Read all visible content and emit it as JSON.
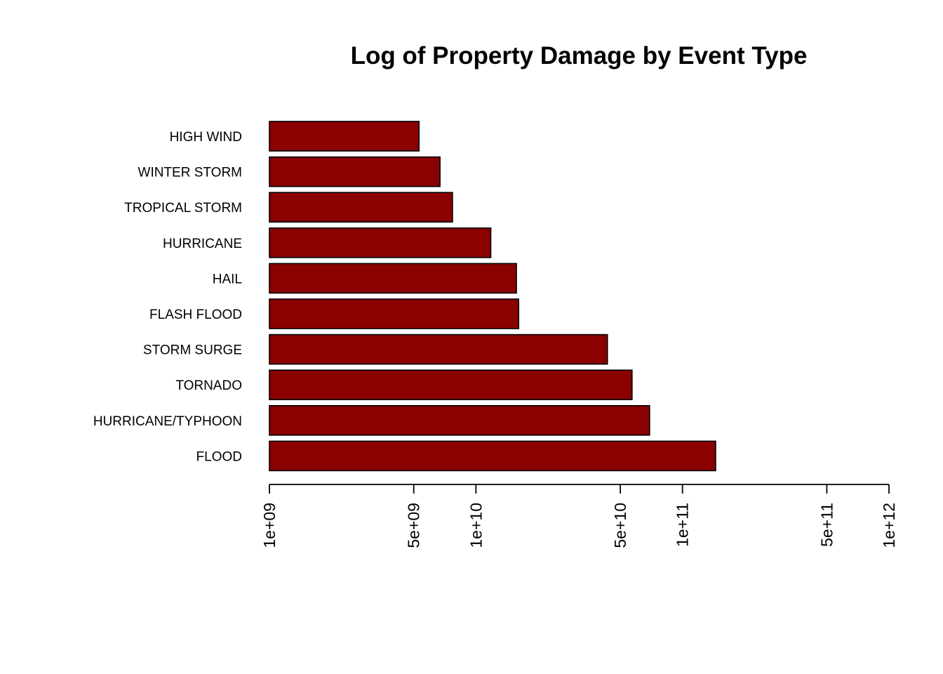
{
  "chart_data": {
    "type": "bar",
    "orientation": "horizontal",
    "title": "Log of Property Damage by Event Type",
    "xlabel": "",
    "ylabel": "",
    "x_scale": "log",
    "xlim": [
      1000000000.0,
      1000000000000.0
    ],
    "categories": [
      "HIGH WIND",
      "WINTER STORM",
      "TROPICAL STORM",
      "HURRICANE",
      "HAIL",
      "FLASH FLOOD",
      "STORM SURGE",
      "TORNADO",
      "HURRICANE/TYPHOON",
      "FLOOD"
    ],
    "values": [
      5300000000.0,
      6700000000.0,
      7700000000.0,
      11800000000.0,
      15700000000.0,
      16100000000.0,
      43300000000.0,
      57000000000.0,
      69300000000.0,
      144700000000.0
    ],
    "x_ticks": [
      {
        "value": 1000000000.0,
        "label": "1e+09"
      },
      {
        "value": 5000000000.0,
        "label": "5e+09"
      },
      {
        "value": 10000000000.0,
        "label": "1e+10"
      },
      {
        "value": 50000000000.0,
        "label": "5e+10"
      },
      {
        "value": 100000000000.0,
        "label": "1e+11"
      },
      {
        "value": 500000000000.0,
        "label": "5e+11"
      },
      {
        "value": 1000000000000.0,
        "label": "1e+12"
      }
    ],
    "bar_color": "#8b0000",
    "bar_border_color": "#000000",
    "grid": false,
    "legend": "none"
  }
}
